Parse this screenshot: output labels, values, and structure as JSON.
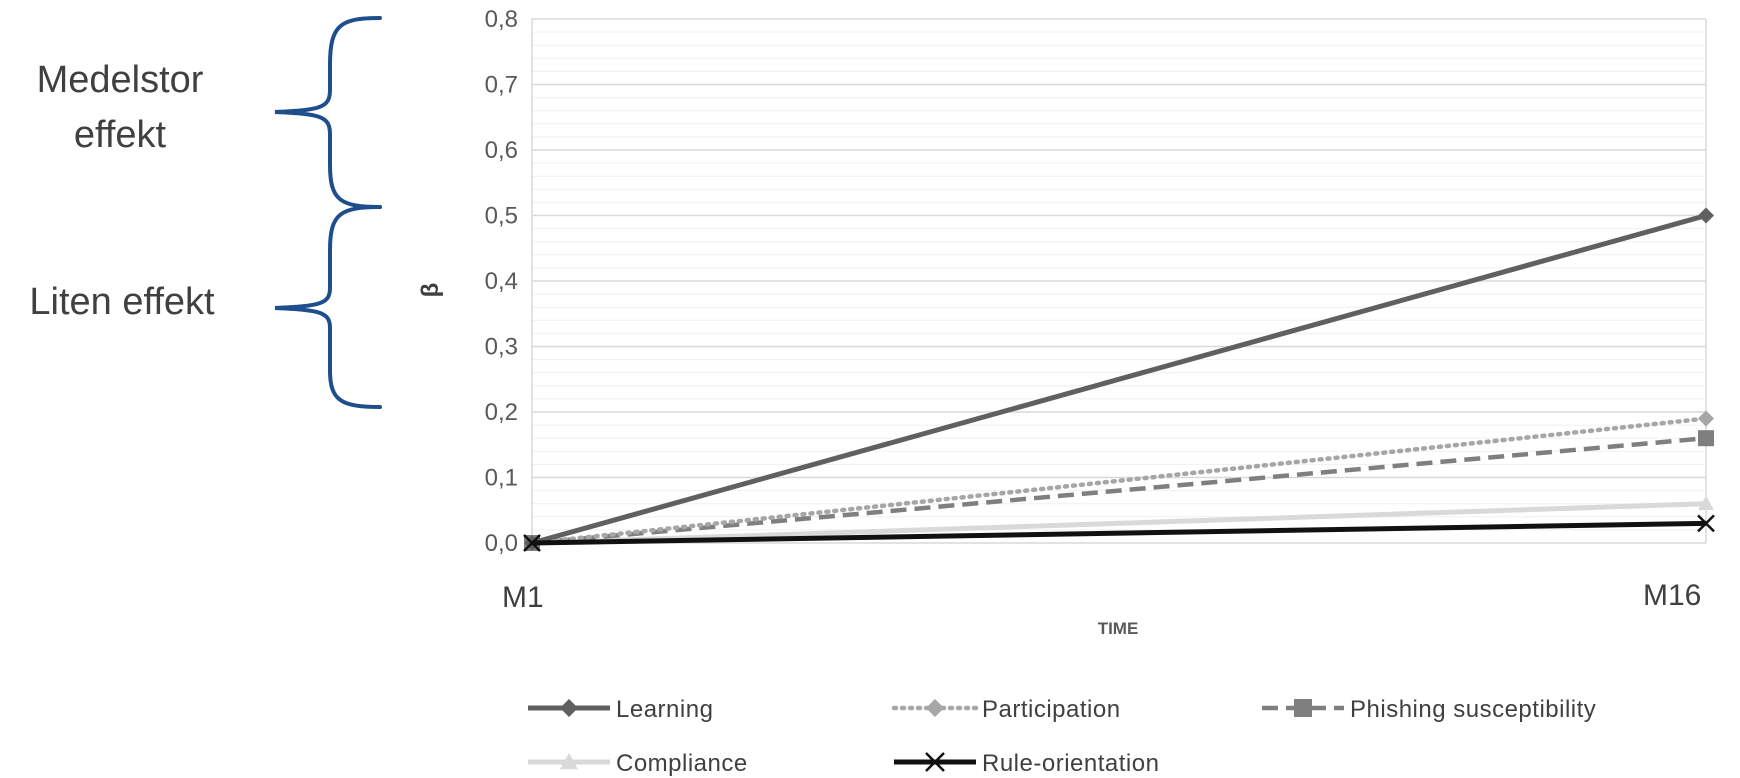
{
  "annotations": {
    "medium": [
      "Medelstor",
      "effekt"
    ],
    "small": "Liten effekt",
    "brace_color": "#1f4e8c"
  },
  "chart_data": {
    "type": "line",
    "xlabel": "TIME",
    "ylabel": "β",
    "categories": [
      "M1",
      "M16"
    ],
    "ylim": [
      0,
      0.8
    ],
    "y_ticks": [
      "0,0",
      "0,1",
      "0,2",
      "0,3",
      "0,4",
      "0,5",
      "0,6",
      "0,7",
      "0,8"
    ],
    "grid": true,
    "legend_position": "bottom",
    "series": [
      {
        "name": "Learning",
        "values": [
          0,
          0.5
        ],
        "color": "#606060",
        "dash": "solid",
        "marker": "diamond"
      },
      {
        "name": "Participation",
        "values": [
          0,
          0.19
        ],
        "color": "#a6a6a6",
        "dash": "dotted",
        "marker": "diamond"
      },
      {
        "name": "Phishing susceptibility",
        "values": [
          0,
          0.16
        ],
        "color": "#7f7f7f",
        "dash": "dashed",
        "marker": "square"
      },
      {
        "name": "Compliance",
        "values": [
          0,
          0.06
        ],
        "color": "#d9d9d9",
        "dash": "solid",
        "marker": "triangle"
      },
      {
        "name": "Rule-orientation",
        "values": [
          0,
          0.03
        ],
        "color": "#111111",
        "dash": "solid",
        "marker": "x"
      }
    ]
  }
}
